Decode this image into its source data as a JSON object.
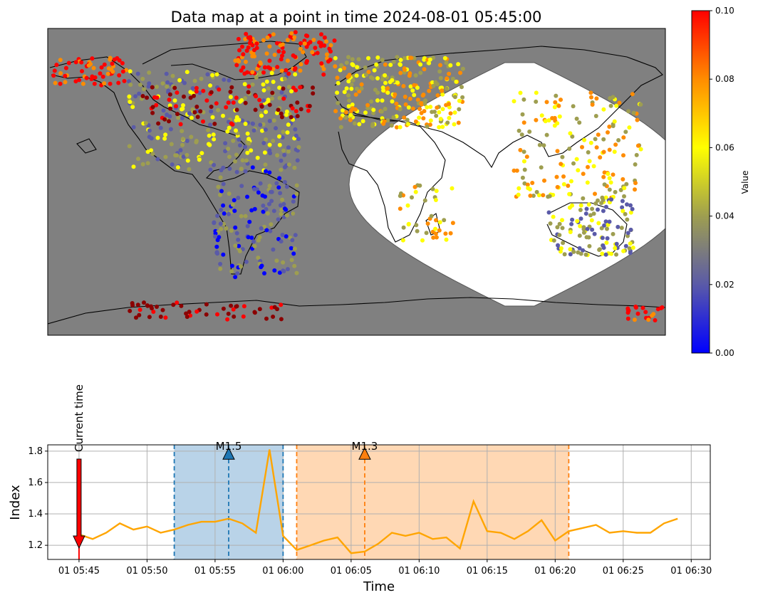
{
  "chart_data": [
    {
      "type": "scatter",
      "title": "Data map at a point in time 2024-08-01 05:45:00",
      "colorbar": {
        "label": "Value",
        "range": [
          0.0,
          0.1
        ],
        "ticks": [
          "0.00",
          "0.02",
          "0.04",
          "0.06",
          "0.08",
          "0.10"
        ],
        "colors": [
          "#0000ff",
          "#5a5aa8",
          "#9e9e50",
          "#ffff00",
          "#ff8c00",
          "#ff0000"
        ]
      },
      "night_color": "#808080",
      "night_terminator_lat": [
        36,
        40,
        45,
        52,
        60,
        66,
        70,
        72,
        72,
        70,
        66,
        60,
        52,
        45,
        30,
        10,
        -10,
        -28,
        -40,
        -52,
        -60,
        -66,
        -70,
        -72,
        -72,
        -70,
        -66,
        -60,
        -52,
        -40,
        -28,
        -10,
        12,
        28,
        36
      ],
      "night_span_lon": [
        -180,
        180
      ]
    },
    {
      "type": "line",
      "xlabel": "Time",
      "ylabel": "Index",
      "ylim": [
        1.11,
        1.84
      ],
      "yticks": [
        "1.2",
        "1.4",
        "1.6",
        "1.8"
      ],
      "xticks": [
        "01 05:45",
        "01 05:50",
        "01 05:55",
        "01 06:00",
        "01 06:05",
        "01 06:10",
        "01 06:15",
        "01 06:20",
        "01 06:25",
        "01 06:30"
      ],
      "xtick_minutes": [
        0,
        5,
        10,
        15,
        20,
        25,
        30,
        35,
        40,
        45
      ],
      "xlim_minutes": [
        -2.3,
        46.4
      ],
      "grid": true,
      "series": [
        {
          "color": "#ffa500",
          "x_minutes": [
            0,
            1,
            2,
            3,
            4,
            5,
            6,
            7,
            8,
            9,
            10,
            11,
            12,
            13,
            14,
            15,
            16,
            17,
            18,
            19,
            20,
            21,
            22,
            23,
            24,
            25,
            26,
            27,
            28,
            29,
            30,
            31,
            32,
            33,
            34,
            35,
            36,
            37,
            38,
            39,
            40,
            41,
            42,
            43,
            44
          ],
          "values": [
            1.27,
            1.24,
            1.28,
            1.34,
            1.3,
            1.32,
            1.28,
            1.3,
            1.33,
            1.35,
            1.35,
            1.37,
            1.34,
            1.28,
            1.81,
            1.26,
            1.17,
            1.2,
            1.23,
            1.25,
            1.15,
            1.16,
            1.21,
            1.28,
            1.26,
            1.28,
            1.24,
            1.25,
            1.18,
            1.48,
            1.29,
            1.28,
            1.24,
            1.29,
            1.36,
            1.23,
            1.29,
            1.31,
            1.33,
            1.28,
            1.29,
            1.28,
            1.28,
            1.34,
            1.37
          ]
        }
      ],
      "events": [
        {
          "label": "M1.5",
          "start": 7,
          "peak": 11,
          "end": 15,
          "line_color": "#1f77b4",
          "fill_color": "#b9d3e8",
          "marker_value": 1.78
        },
        {
          "label": "M1.3",
          "start": 16,
          "peak": 21,
          "end": 36,
          "line_color": "#ff7f0e",
          "fill_color": "#ffd8b4",
          "marker_value": 1.78
        }
      ],
      "current_time": {
        "label": "Current time",
        "minute": 0,
        "color": "#ff0000"
      }
    }
  ]
}
